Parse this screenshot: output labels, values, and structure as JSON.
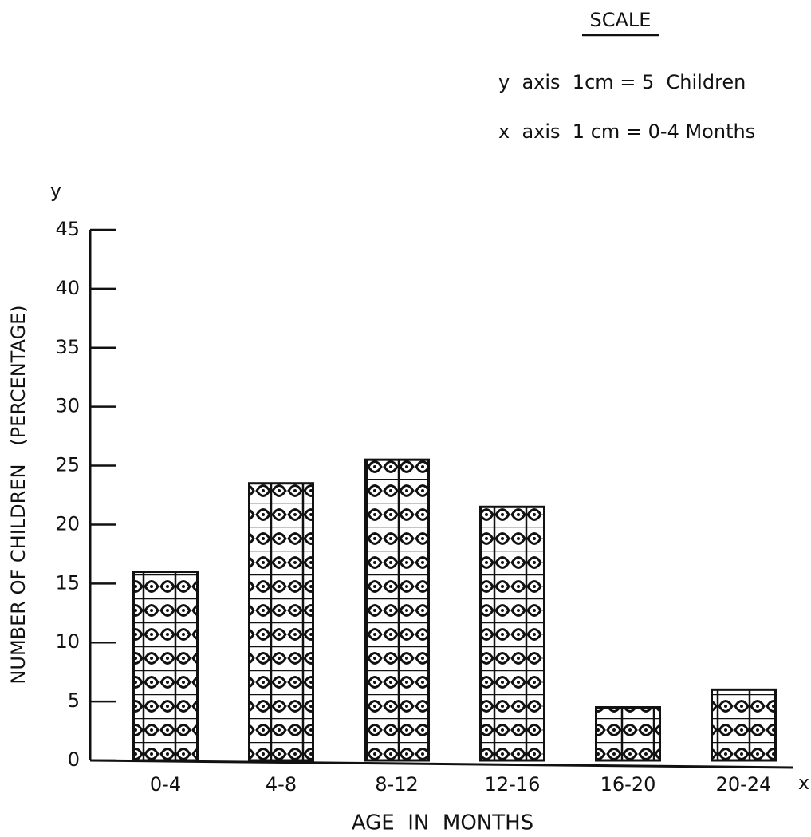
{
  "chart_data": {
    "type": "bar",
    "scale_title": "SCALE",
    "scale_notes": [
      "y  axis  1cm = 5  Children",
      "x  axis  1 cm = 0-4 Months"
    ],
    "y_axis_name": "y",
    "x_axis_name": "x",
    "ylabel": "NUMBER OF CHILDREN   (PERCENTAGE)",
    "xlabel": "AGE  IN  MONTHS",
    "categories": [
      "0-4",
      "4-8",
      "8-12",
      "12-16",
      "16-20",
      "20-24"
    ],
    "values": [
      16,
      23.5,
      25.5,
      21.5,
      4.5,
      6
    ],
    "color": "#111111",
    "ylim": [
      0,
      45
    ],
    "yticks": [
      0,
      5,
      10,
      15,
      20,
      25,
      30,
      35,
      40,
      45
    ],
    "grid": false
  }
}
